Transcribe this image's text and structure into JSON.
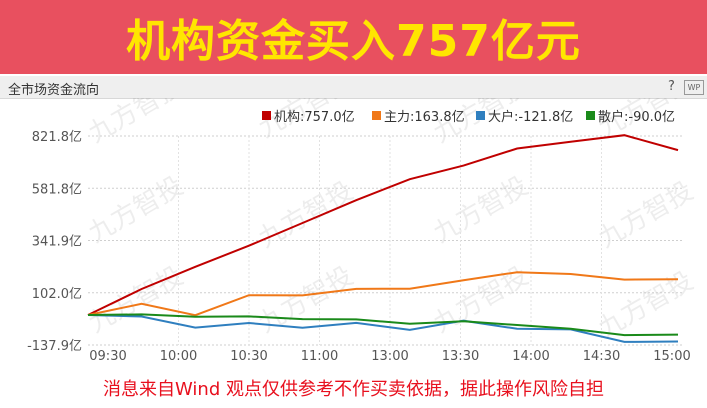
{
  "banner": {
    "title": "机构资金买入757亿元"
  },
  "panel": {
    "title": "全市场资金流向",
    "help_label": "?",
    "wp_label": "WP"
  },
  "watermark": "九方智投",
  "footer": {
    "text": "消息来自Wind  观点仅供参考不作买卖依据，据此操作风险自担"
  },
  "colors": {
    "banner_bg": "#e8505f",
    "banner_text": "#ffe600",
    "institution": "#c00000",
    "main": "#f07818",
    "large": "#2f7fbf",
    "retail": "#1a8a1a",
    "footer_text": "#e8101e"
  },
  "chart_data": {
    "type": "line",
    "ylim": [
      -137.9,
      821.8
    ],
    "yticks": [
      "821.8亿",
      "581.8亿",
      "341.9亿",
      "102.0亿",
      "-137.9亿"
    ],
    "ytick_values": [
      821.8,
      581.8,
      341.9,
      102.0,
      -137.9
    ],
    "xticks": [
      "09:30",
      "10:00",
      "10:30",
      "11:00",
      "13:00",
      "13:30",
      "14:00",
      "14:30",
      "15:00"
    ],
    "grid": true,
    "legend": "top-right",
    "series": [
      {
        "name": "机构",
        "legend_label": "机构:757.0亿",
        "color": "#c00000",
        "values": [
          0,
          120,
          220,
          320,
          420,
          530,
          620,
          690,
          760,
          800,
          820,
          757.0
        ]
      },
      {
        "name": "主力",
        "legend_label": "主力:163.8亿",
        "color": "#f07818",
        "values": [
          0,
          40,
          10,
          80,
          100,
          110,
          130,
          150,
          205,
          180,
          170,
          163.8
        ]
      },
      {
        "name": "大户",
        "legend_label": "大户:-121.8亿",
        "color": "#2f7fbf",
        "values": [
          0,
          -20,
          -45,
          -50,
          -45,
          -50,
          -55,
          -40,
          -50,
          -80,
          -110,
          -121.8
        ]
      },
      {
        "name": "散户",
        "legend_label": "散户:-90.0亿",
        "color": "#1a8a1a",
        "values": [
          0,
          0,
          -5,
          -10,
          -15,
          -25,
          -35,
          -35,
          -40,
          -70,
          -85,
          -90.0
        ]
      }
    ]
  }
}
